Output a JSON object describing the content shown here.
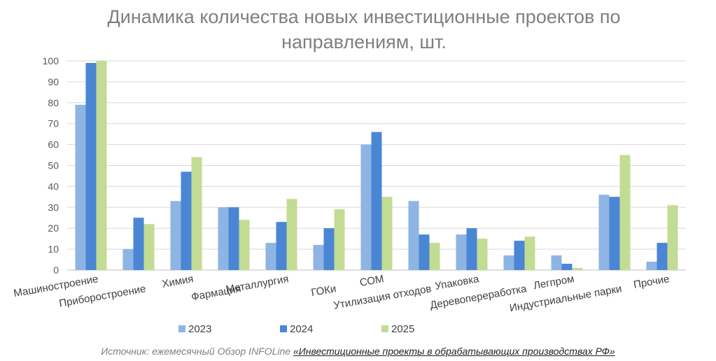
{
  "title_line1": "Динамика количества новых инвестиционные проектов по",
  "title_line2": "направлениям, шт.",
  "source_prefix": "Источник: ежемесячный Обзор INFOLine ",
  "source_link": "«Инвестиционные проекты в обрабатывающих производствах РФ»",
  "colors": {
    "2023": "#8eb4e3",
    "2024": "#4a86d4",
    "2025": "#c3dc93",
    "grid": "#d9d9d9"
  },
  "chart_data": {
    "type": "bar",
    "title": "Динамика количества новых инвестиционные проектов по направлениям, шт.",
    "xlabel": "",
    "ylabel": "",
    "ylim": [
      0,
      100
    ],
    "yticks": [
      0,
      10,
      20,
      30,
      40,
      50,
      60,
      70,
      80,
      90,
      100
    ],
    "grid": true,
    "legend_position": "bottom",
    "categories": [
      "Машиностроение",
      "Приборостроение",
      "Химия",
      "Фармация",
      "Металлургия",
      "ГОКи",
      "СОМ",
      "Утилизация отходов",
      "Упаковка",
      "Деревопереработка",
      "Легпром",
      "Индустриальные парки",
      "Прочие"
    ],
    "series": [
      {
        "name": "2023",
        "values": [
          79,
          10,
          33,
          30,
          13,
          12,
          60,
          33,
          17,
          7,
          7,
          36,
          4
        ]
      },
      {
        "name": "2024",
        "values": [
          99,
          25,
          47,
          30,
          23,
          20,
          66,
          17,
          20,
          14,
          3,
          35,
          13
        ]
      },
      {
        "name": "2025",
        "values": [
          100,
          22,
          54,
          24,
          34,
          29,
          35,
          13,
          15,
          16,
          1,
          55,
          31
        ]
      }
    ]
  }
}
